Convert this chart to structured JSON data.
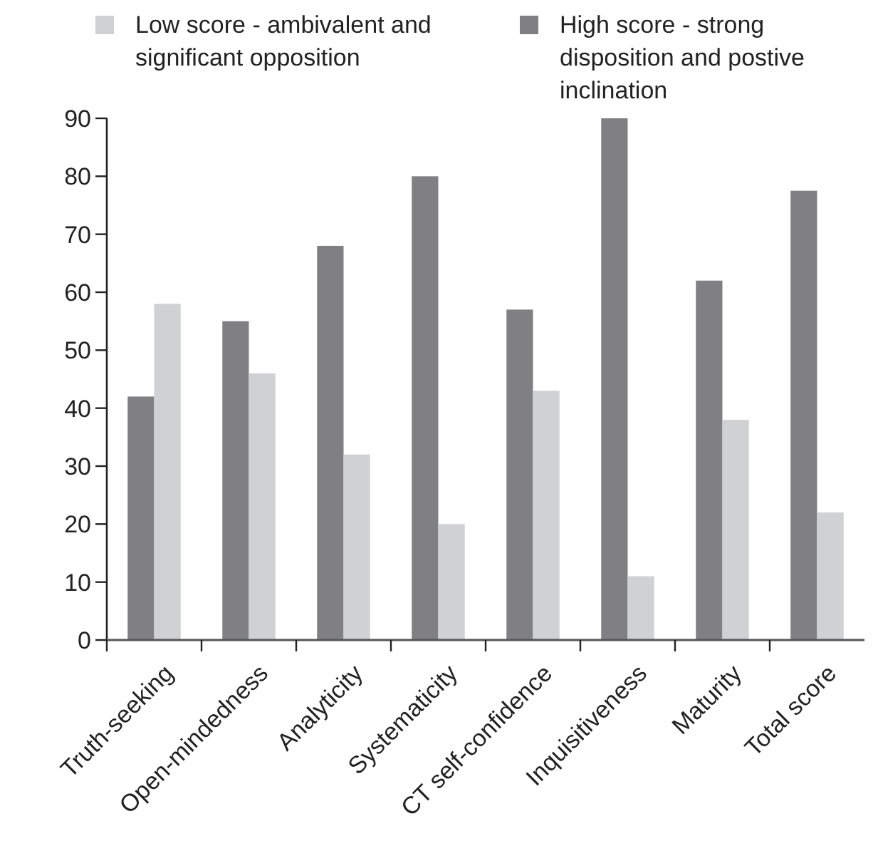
{
  "chart_data": {
    "type": "bar",
    "categories": [
      "Truth-seeking",
      "Open-mindedness",
      "Analyticity",
      "Systematicity",
      "CT self-confidence",
      "Inquisitiveness",
      "Maturity",
      "Total score"
    ],
    "series": [
      {
        "name": "High score - strong disposition and postive inclination",
        "color": "#808083",
        "values": [
          42,
          55,
          68,
          80,
          57,
          90,
          62,
          77.5
        ]
      },
      {
        "name": "Low score - ambivalent and significant opposition",
        "color": "#d0d1d3",
        "values": [
          58,
          46,
          32,
          20,
          43,
          11,
          38,
          22
        ]
      }
    ],
    "ylim": [
      0,
      90
    ],
    "yticks": [
      0,
      10,
      20,
      30,
      40,
      50,
      60,
      70,
      80,
      90
    ],
    "grid": false,
    "legend": "top"
  }
}
